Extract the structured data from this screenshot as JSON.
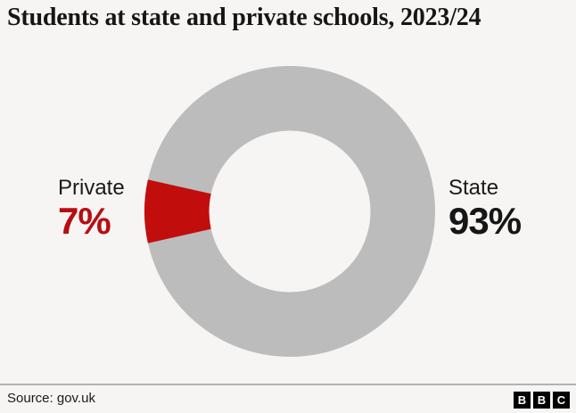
{
  "title": "Students at state and private schools, 2023/24",
  "chart_data": {
    "type": "pie",
    "donut": true,
    "title": "Students at state and private schools, 2023/24",
    "categories": [
      "Private",
      "State"
    ],
    "values": [
      7,
      93
    ],
    "unit": "%",
    "value_labels": [
      "7%",
      "93%"
    ],
    "segment_colors": [
      "#c20d0d",
      "#bcbcbc"
    ],
    "value_text_colors": [
      "#b80d12",
      "#161616"
    ],
    "wedge_center_angle_deg": 180,
    "legend_position": "none",
    "callout_sides": [
      "left",
      "right"
    ]
  },
  "footer": {
    "source": "Source: gov.uk",
    "logo": {
      "letters": [
        "B",
        "B",
        "C"
      ],
      "color": "#000000"
    }
  },
  "colors": {
    "background": "#f6f5f3",
    "title": "#161616",
    "label": "#1a1a1a",
    "divider": "#b3b3b3"
  }
}
